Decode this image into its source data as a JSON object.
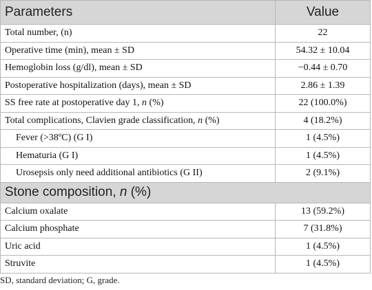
{
  "table": {
    "header": [
      "Parameters",
      "Value"
    ],
    "groups": [
      {
        "rows": [
          {
            "label": [
              "Total number, (n)"
            ],
            "value": "22"
          },
          {
            "label": [
              "Operative time (min), mean ± SD"
            ],
            "value": "54.32 ± 10.04"
          },
          {
            "label": [
              "Hemoglobin loss (g/dl), mean ± SD"
            ],
            "value": "−0.44 ± 0.70"
          },
          {
            "label": [
              "Postoperative hospitalization (days), mean ± SD"
            ],
            "value": "2.86 ± 1.39"
          },
          {
            "label": [
              "SS free rate at postoperative day 1, ",
              "n",
              " (%)"
            ],
            "value": "22 (100.0%)"
          },
          {
            "label": [
              "Total complications, Clavien grade classification, ",
              "n",
              " (%)"
            ],
            "value": "4 (18.2%)"
          },
          {
            "label": [
              "Fever (>38ºC) (G I)"
            ],
            "value": "1 (4.5%)"
          },
          {
            "label": [
              "Hematuria (G I)"
            ],
            "value": "1 (4.5%)"
          },
          {
            "label": [
              "Urosepsis only need additional antibiotics (G II)"
            ],
            "value": "2 (9.1%)"
          }
        ]
      },
      {
        "title": [
          "Stone composition, ",
          "n",
          " (%)"
        ],
        "rows": [
          {
            "label": [
              "Calcium oxalate"
            ],
            "value": "13 (59.2%)"
          },
          {
            "label": [
              "Calcium phosphate"
            ],
            "value": "7 (31.8%)"
          },
          {
            "label": [
              "Uric acid"
            ],
            "value": "1 (4.5%)"
          },
          {
            "label": [
              "Struvite"
            ],
            "value": "1 (4.5%)"
          }
        ]
      }
    ]
  },
  "footnote": "SD, standard deviation; G, grade."
}
